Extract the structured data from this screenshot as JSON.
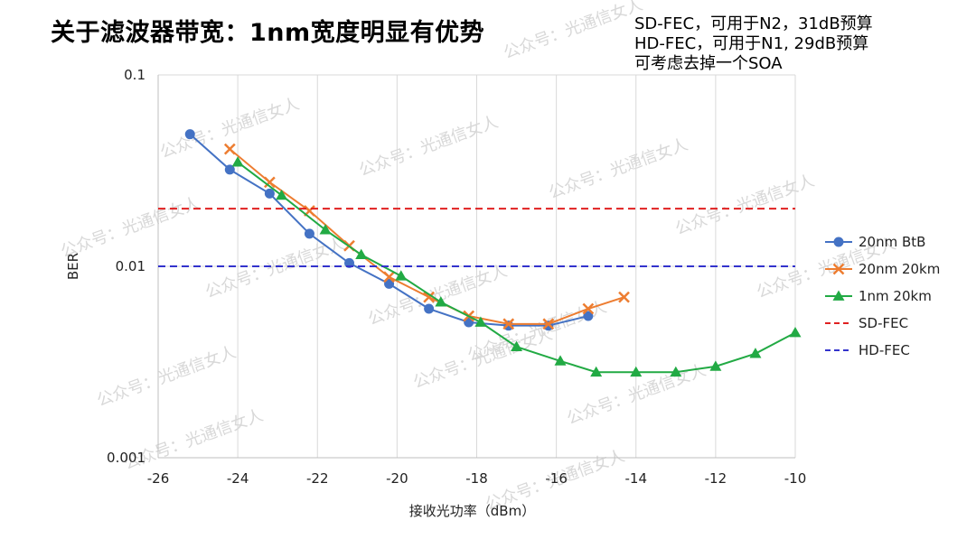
{
  "slide": {
    "title": "关于滤波器带宽：1nm宽度明显有优势",
    "notes": [
      "SD-FEC，可用于N2，31dB预算",
      "HD-FEC，可用于N1, 29dB预算",
      "可考虑去掉一个SOA"
    ],
    "watermark": "公众号：光通信女人"
  },
  "chart_data": {
    "type": "line",
    "title": "",
    "xlabel": "接收光功率（dBm）",
    "ylabel": "BER",
    "xlim": [
      -26,
      -10
    ],
    "ylim": [
      0.001,
      0.1
    ],
    "y_scale": "log",
    "x_ticks": [
      -26,
      -24,
      -22,
      -20,
      -18,
      -16,
      -14,
      -12,
      -10
    ],
    "y_ticks": [
      0.1,
      0.01,
      0.001
    ],
    "y_tick_labels": [
      "0.1",
      "0.01",
      "0.001"
    ],
    "grid": "vertical",
    "legend_position": "right",
    "series": [
      {
        "name": "20nm BtB",
        "color": "#4472c4",
        "marker": "circle",
        "x": [
          -25.2,
          -24.2,
          -23.2,
          -22.2,
          -21.2,
          -20.2,
          -19.2,
          -18.2,
          -17.2,
          -16.2,
          -15.2
        ],
        "y": [
          0.049,
          0.032,
          0.024,
          0.0148,
          0.0104,
          0.0081,
          0.006,
          0.0051,
          0.0049,
          0.0049,
          0.0055
        ]
      },
      {
        "name": "20nm 20km",
        "color": "#ed7d31",
        "marker": "x",
        "x": [
          -24.2,
          -23.2,
          -22.2,
          -21.2,
          -20.2,
          -19.2,
          -18.2,
          -17.2,
          -16.2,
          -15.2,
          -14.3
        ],
        "y": [
          0.041,
          0.0275,
          0.0195,
          0.0128,
          0.0088,
          0.0069,
          0.0055,
          0.005,
          0.005,
          0.006,
          0.0069
        ]
      },
      {
        "name": "1nm 20km",
        "color": "#22aa44",
        "marker": "triangle",
        "x": [
          -24,
          -22.9,
          -21.8,
          -20.9,
          -19.9,
          -18.9,
          -17.9,
          -17,
          -15.9,
          -15,
          -14,
          -13,
          -12,
          -11,
          -10
        ],
        "y": [
          0.035,
          0.0235,
          0.0155,
          0.0115,
          0.0089,
          0.0065,
          0.0051,
          0.0038,
          0.0032,
          0.0028,
          0.0028,
          0.0028,
          0.003,
          0.0035,
          0.0045
        ]
      },
      {
        "name": "SD-FEC",
        "color": "#e02020",
        "dash": true,
        "x": [
          -26,
          -10
        ],
        "y": [
          0.02,
          0.02
        ]
      },
      {
        "name": "HD-FEC",
        "color": "#3333cc",
        "dash": true,
        "x": [
          -26,
          -10
        ],
        "y": [
          0.01,
          0.01
        ]
      }
    ]
  }
}
